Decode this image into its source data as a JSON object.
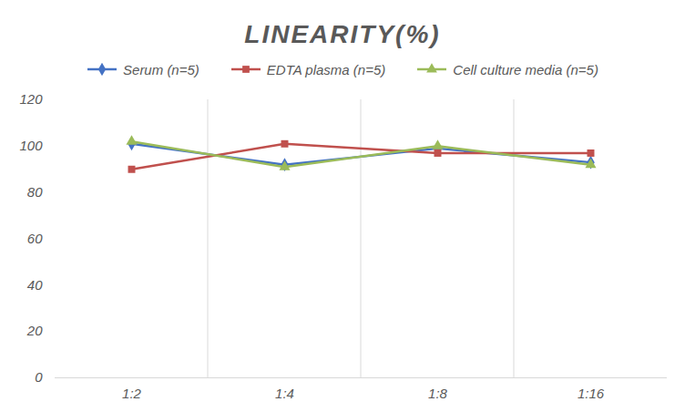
{
  "chart_data": {
    "type": "line",
    "title": "LINEARITY(%)",
    "categories": [
      "1:2",
      "1:4",
      "1:8",
      "1:16"
    ],
    "series": [
      {
        "name": "Serum (n=5)",
        "color": "#4472c4",
        "marker": "diamond",
        "values": [
          101,
          92,
          99,
          93
        ]
      },
      {
        "name": "EDTA plasma (n=5)",
        "color": "#c0504d",
        "marker": "square",
        "values": [
          90,
          101,
          97,
          97
        ]
      },
      {
        "name": "Cell culture media (n=5)",
        "color": "#9bbb59",
        "marker": "triangle",
        "values": [
          102,
          91,
          100,
          92
        ]
      }
    ],
    "ylim": [
      0,
      120
    ],
    "yticks": [
      0,
      20,
      40,
      60,
      80,
      100,
      120
    ],
    "grid": true,
    "legend": "top"
  }
}
